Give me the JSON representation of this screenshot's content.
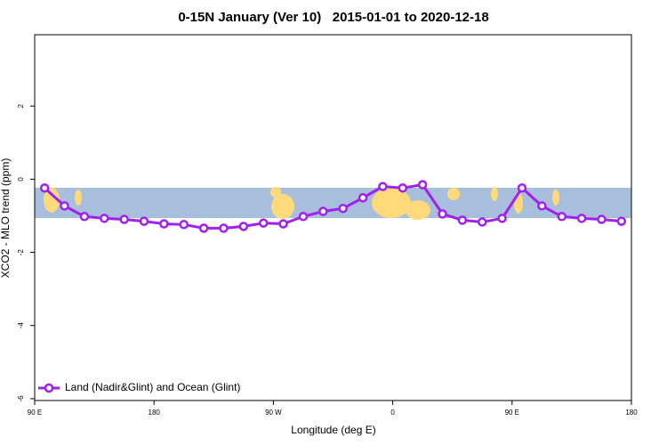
{
  "chart_data": {
    "type": "line",
    "title": "0-15N January (Ver 10)   2015-01-01 to 2020-12-18",
    "x_label": "Longitude (deg E)",
    "y_label": "XCO2 - MLO trend (ppm)",
    "x": [
      97.5,
      112.5,
      127.5,
      142.5,
      157.5,
      172.5,
      187.5,
      202.5,
      217.5,
      232.5,
      247.5,
      262.5,
      277.5,
      292.5,
      307.5,
      322.5,
      337.5,
      352.5,
      367.5,
      382.5,
      397.5,
      412.5,
      427.5,
      442.5,
      457.5,
      472.5,
      487.5,
      502.5,
      517.5,
      532.5
    ],
    "series": [
      {
        "name": "Land (Nadir&Glint) and Ocean (Glint)",
        "color": "#a020f0",
        "values": [
          -0.24,
          -0.73,
          -1.02,
          -1.07,
          -1.1,
          -1.15,
          -1.22,
          -1.24,
          -1.34,
          -1.34,
          -1.29,
          -1.2,
          -1.22,
          -1.02,
          -0.88,
          -0.8,
          -0.51,
          -0.2,
          -0.24,
          -0.15,
          -0.95,
          -1.12,
          -1.17,
          -1.07,
          -0.24,
          -0.73,
          -1.02,
          -1.07,
          -1.1,
          -1.15
        ]
      }
    ],
    "xlim": [
      90,
      540
    ],
    "xticks": [
      {
        "value": 90,
        "label": "90 E"
      },
      180,
      {
        "value": 270,
        "label": "90 W"
      },
      0,
      {
        "value": 450,
        "label": "90 E"
      },
      180
    ],
    "ylim": [
      -6.05,
      3.95
    ],
    "yticks": [
      -6,
      -4,
      -2,
      0,
      2
    ],
    "legend": "bottom-left"
  }
}
